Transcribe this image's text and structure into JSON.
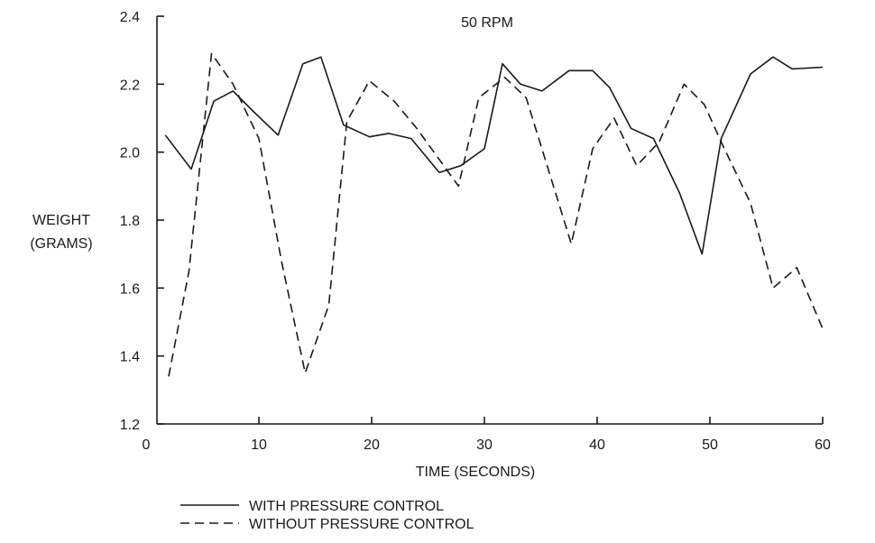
{
  "chart_data": {
    "type": "line",
    "title": "50 RPM",
    "xlabel": "TIME (SECONDS)",
    "ylabel": [
      "WEIGHT",
      "(GRAMS)"
    ],
    "xlim": [
      0,
      60
    ],
    "ylim": [
      1.2,
      2.4
    ],
    "xticks": [
      0,
      10,
      20,
      30,
      40,
      50,
      60
    ],
    "xtick_labels": [
      "0",
      "10",
      "20",
      "30",
      "40",
      "50",
      "60"
    ],
    "yticks": [
      1.2,
      1.4,
      1.6,
      1.8,
      2.0,
      2.2,
      2.4
    ],
    "ytick_labels": [
      "1.2",
      "1.4",
      "1.6",
      "1.8",
      "2.0",
      "2.2",
      "2.4"
    ],
    "grid": false,
    "legend_position": "bottom-left",
    "series": [
      {
        "name": "WITH PRESSURE CONTROL",
        "style": "solid",
        "color": "#1a1a1a",
        "x": [
          1.7,
          4.0,
          6.0,
          7.7,
          9.5,
          11.7,
          13.9,
          15.5,
          17.5,
          19.8,
          21.5,
          23.5,
          26.0,
          27.9,
          30.0,
          31.6,
          33.2,
          35.1,
          37.5,
          39.6,
          41.1,
          43.0,
          45.0,
          47.3,
          49.3,
          51.0,
          53.6,
          55.6,
          57.3,
          60.0
        ],
        "y": [
          2.05,
          1.95,
          2.15,
          2.18,
          2.12,
          2.05,
          2.26,
          2.28,
          2.08,
          2.045,
          2.055,
          2.04,
          1.94,
          1.96,
          2.01,
          2.26,
          2.2,
          2.18,
          2.24,
          2.24,
          2.19,
          2.07,
          2.04,
          1.88,
          1.7,
          2.04,
          2.23,
          2.28,
          2.245,
          2.25
        ]
      },
      {
        "name": "WITHOUT PRESSURE CONTROL",
        "style": "dashed",
        "color": "#1a1a1a",
        "x": [
          2.0,
          3.8,
          5.8,
          7.7,
          10.0,
          12.0,
          14.1,
          16.2,
          17.8,
          19.8,
          22.0,
          24.0,
          27.7,
          29.5,
          31.8,
          33.7,
          37.7,
          39.6,
          41.5,
          43.5,
          45.5,
          47.7,
          49.5,
          51.0,
          53.6,
          55.6,
          57.7,
          60.0
        ],
        "y": [
          1.34,
          1.65,
          2.29,
          2.2,
          2.04,
          1.68,
          1.35,
          1.55,
          2.09,
          2.21,
          2.15,
          2.07,
          1.9,
          2.16,
          2.22,
          2.16,
          1.73,
          2.01,
          2.1,
          1.96,
          2.03,
          2.2,
          2.14,
          2.03,
          1.85,
          1.6,
          1.66,
          1.48
        ]
      }
    ]
  }
}
